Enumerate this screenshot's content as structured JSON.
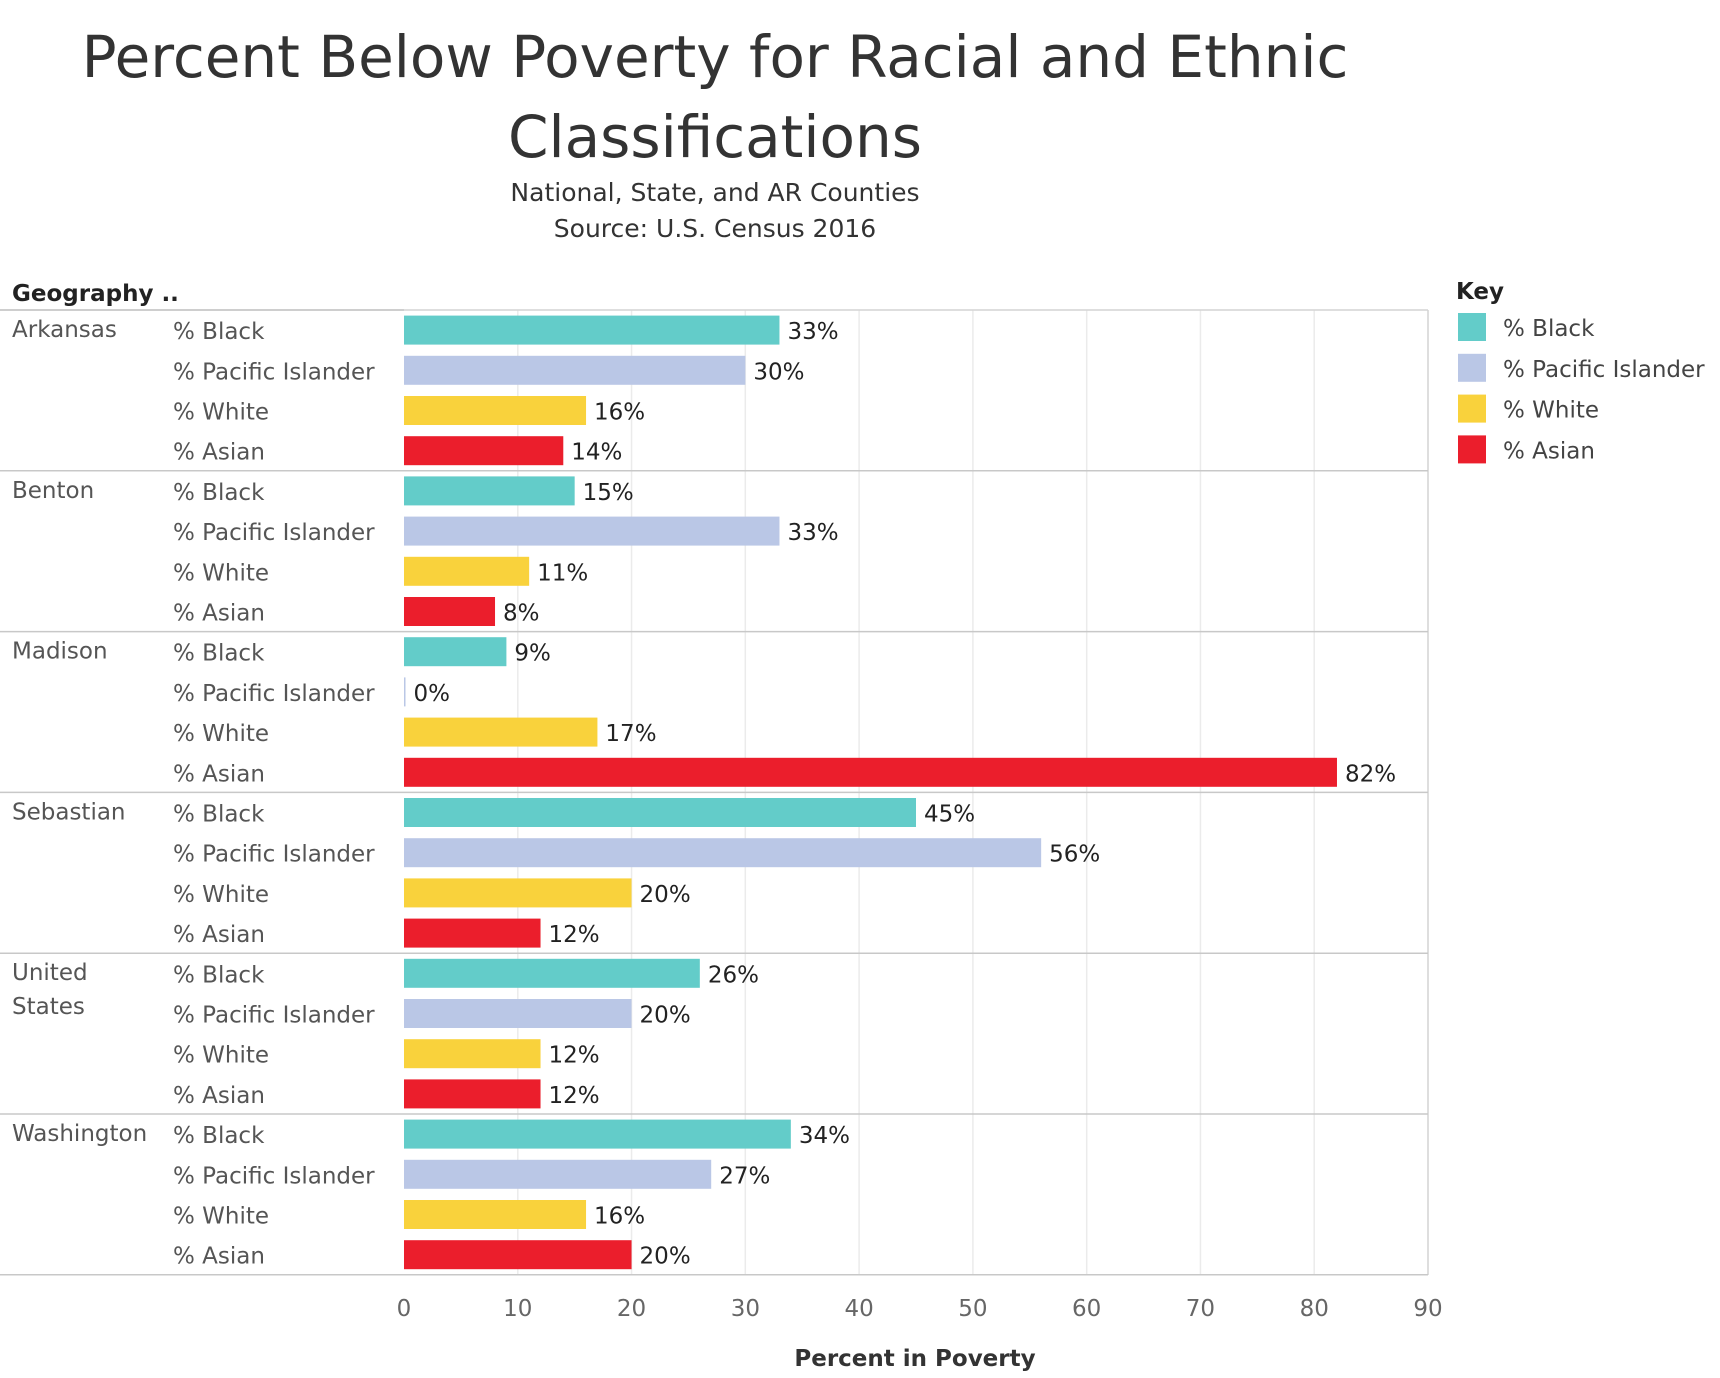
{
  "chart_data": {
    "type": "bar",
    "orientation": "horizontal",
    "title_line1": "Percent Below Poverty for Racial and Ethnic",
    "title_line2": "Classifications",
    "subtitle_line1": "National, State, and AR Counties",
    "subtitle_line2": "Source: U.S. Census 2016",
    "row_header": "Geography ..",
    "xlabel": "Percent in Poverty",
    "xlim": [
      0,
      90
    ],
    "xticks": [
      "0",
      "10",
      "20",
      "30",
      "40",
      "50",
      "60",
      "70",
      "80",
      "90"
    ],
    "grid": true,
    "legend": {
      "title": "Key",
      "placement": "right",
      "items": [
        {
          "label": "% Black",
          "color": "#63CCC9"
        },
        {
          "label": "% Pacific Islander",
          "color": "#BAC7E6"
        },
        {
          "label": "% White",
          "color": "#F9D23C"
        },
        {
          "label": "% Asian",
          "color": "#EB1E2C"
        }
      ]
    },
    "categories": [
      "% Black",
      "% Pacific Islander",
      "% White",
      "% Asian"
    ],
    "groups": [
      {
        "name": "Arkansas",
        "name_lines": [
          "Arkansas"
        ],
        "values": [
          33,
          30,
          16,
          14
        ],
        "labels": [
          "33%",
          "30%",
          "16%",
          "14%"
        ]
      },
      {
        "name": "Benton",
        "name_lines": [
          "Benton"
        ],
        "values": [
          15,
          33,
          11,
          8
        ],
        "labels": [
          "15%",
          "33%",
          "11%",
          "8%"
        ]
      },
      {
        "name": "Madison",
        "name_lines": [
          "Madison"
        ],
        "values": [
          9,
          0,
          17,
          82
        ],
        "labels": [
          "9%",
          "0%",
          "17%",
          "82%"
        ]
      },
      {
        "name": "Sebastian",
        "name_lines": [
          "Sebastian"
        ],
        "values": [
          45,
          56,
          20,
          12
        ],
        "labels": [
          "45%",
          "56%",
          "20%",
          "12%"
        ]
      },
      {
        "name": "United States",
        "name_lines": [
          "United",
          "States"
        ],
        "values": [
          26,
          20,
          12,
          12
        ],
        "labels": [
          "26%",
          "20%",
          "12%",
          "12%"
        ]
      },
      {
        "name": "Washington",
        "name_lines": [
          "Washington"
        ],
        "values": [
          34,
          27,
          16,
          20
        ],
        "labels": [
          "34%",
          "27%",
          "16%",
          "20%"
        ]
      }
    ]
  }
}
